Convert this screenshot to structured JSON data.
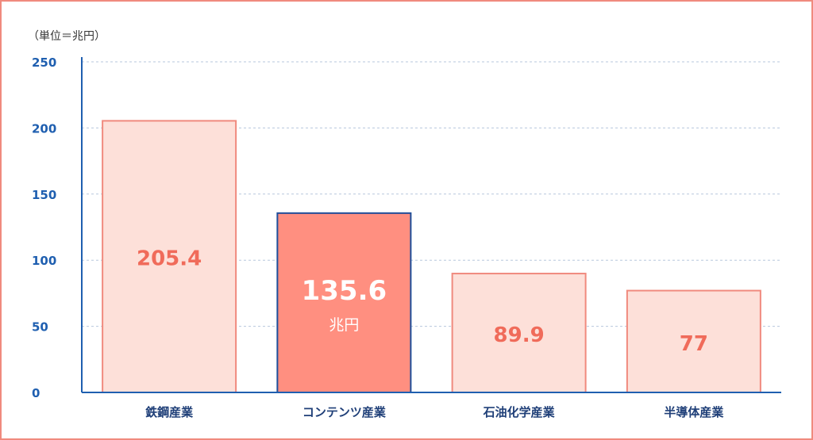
{
  "chart_data": {
    "type": "bar",
    "unit_label": "（単位＝兆円）",
    "categories": [
      "鉄鋼産業",
      "コンテンツ産業",
      "石油化学産業",
      "半導体産業"
    ],
    "values": [
      205.4,
      135.6,
      89.9,
      77
    ],
    "value_labels": [
      "205.4",
      "135.6",
      "89.9",
      "77"
    ],
    "highlight_index": 1,
    "highlight_unit": "兆円",
    "ylim": [
      0,
      250
    ],
    "yticks": [
      0,
      50,
      100,
      150,
      200,
      250
    ],
    "grid": true,
    "colors": {
      "bar_fill": "#fde0d9",
      "bar_stroke": "#f08a7e",
      "highlight_fill": "#ff8f80",
      "highlight_stroke": "#1f4e9a",
      "value_text": "#f06b5a",
      "highlight_text": "#ffffff",
      "axis": "#1f5fb0",
      "grid": "#b7c7dd",
      "frame": "#f08a7e"
    }
  }
}
